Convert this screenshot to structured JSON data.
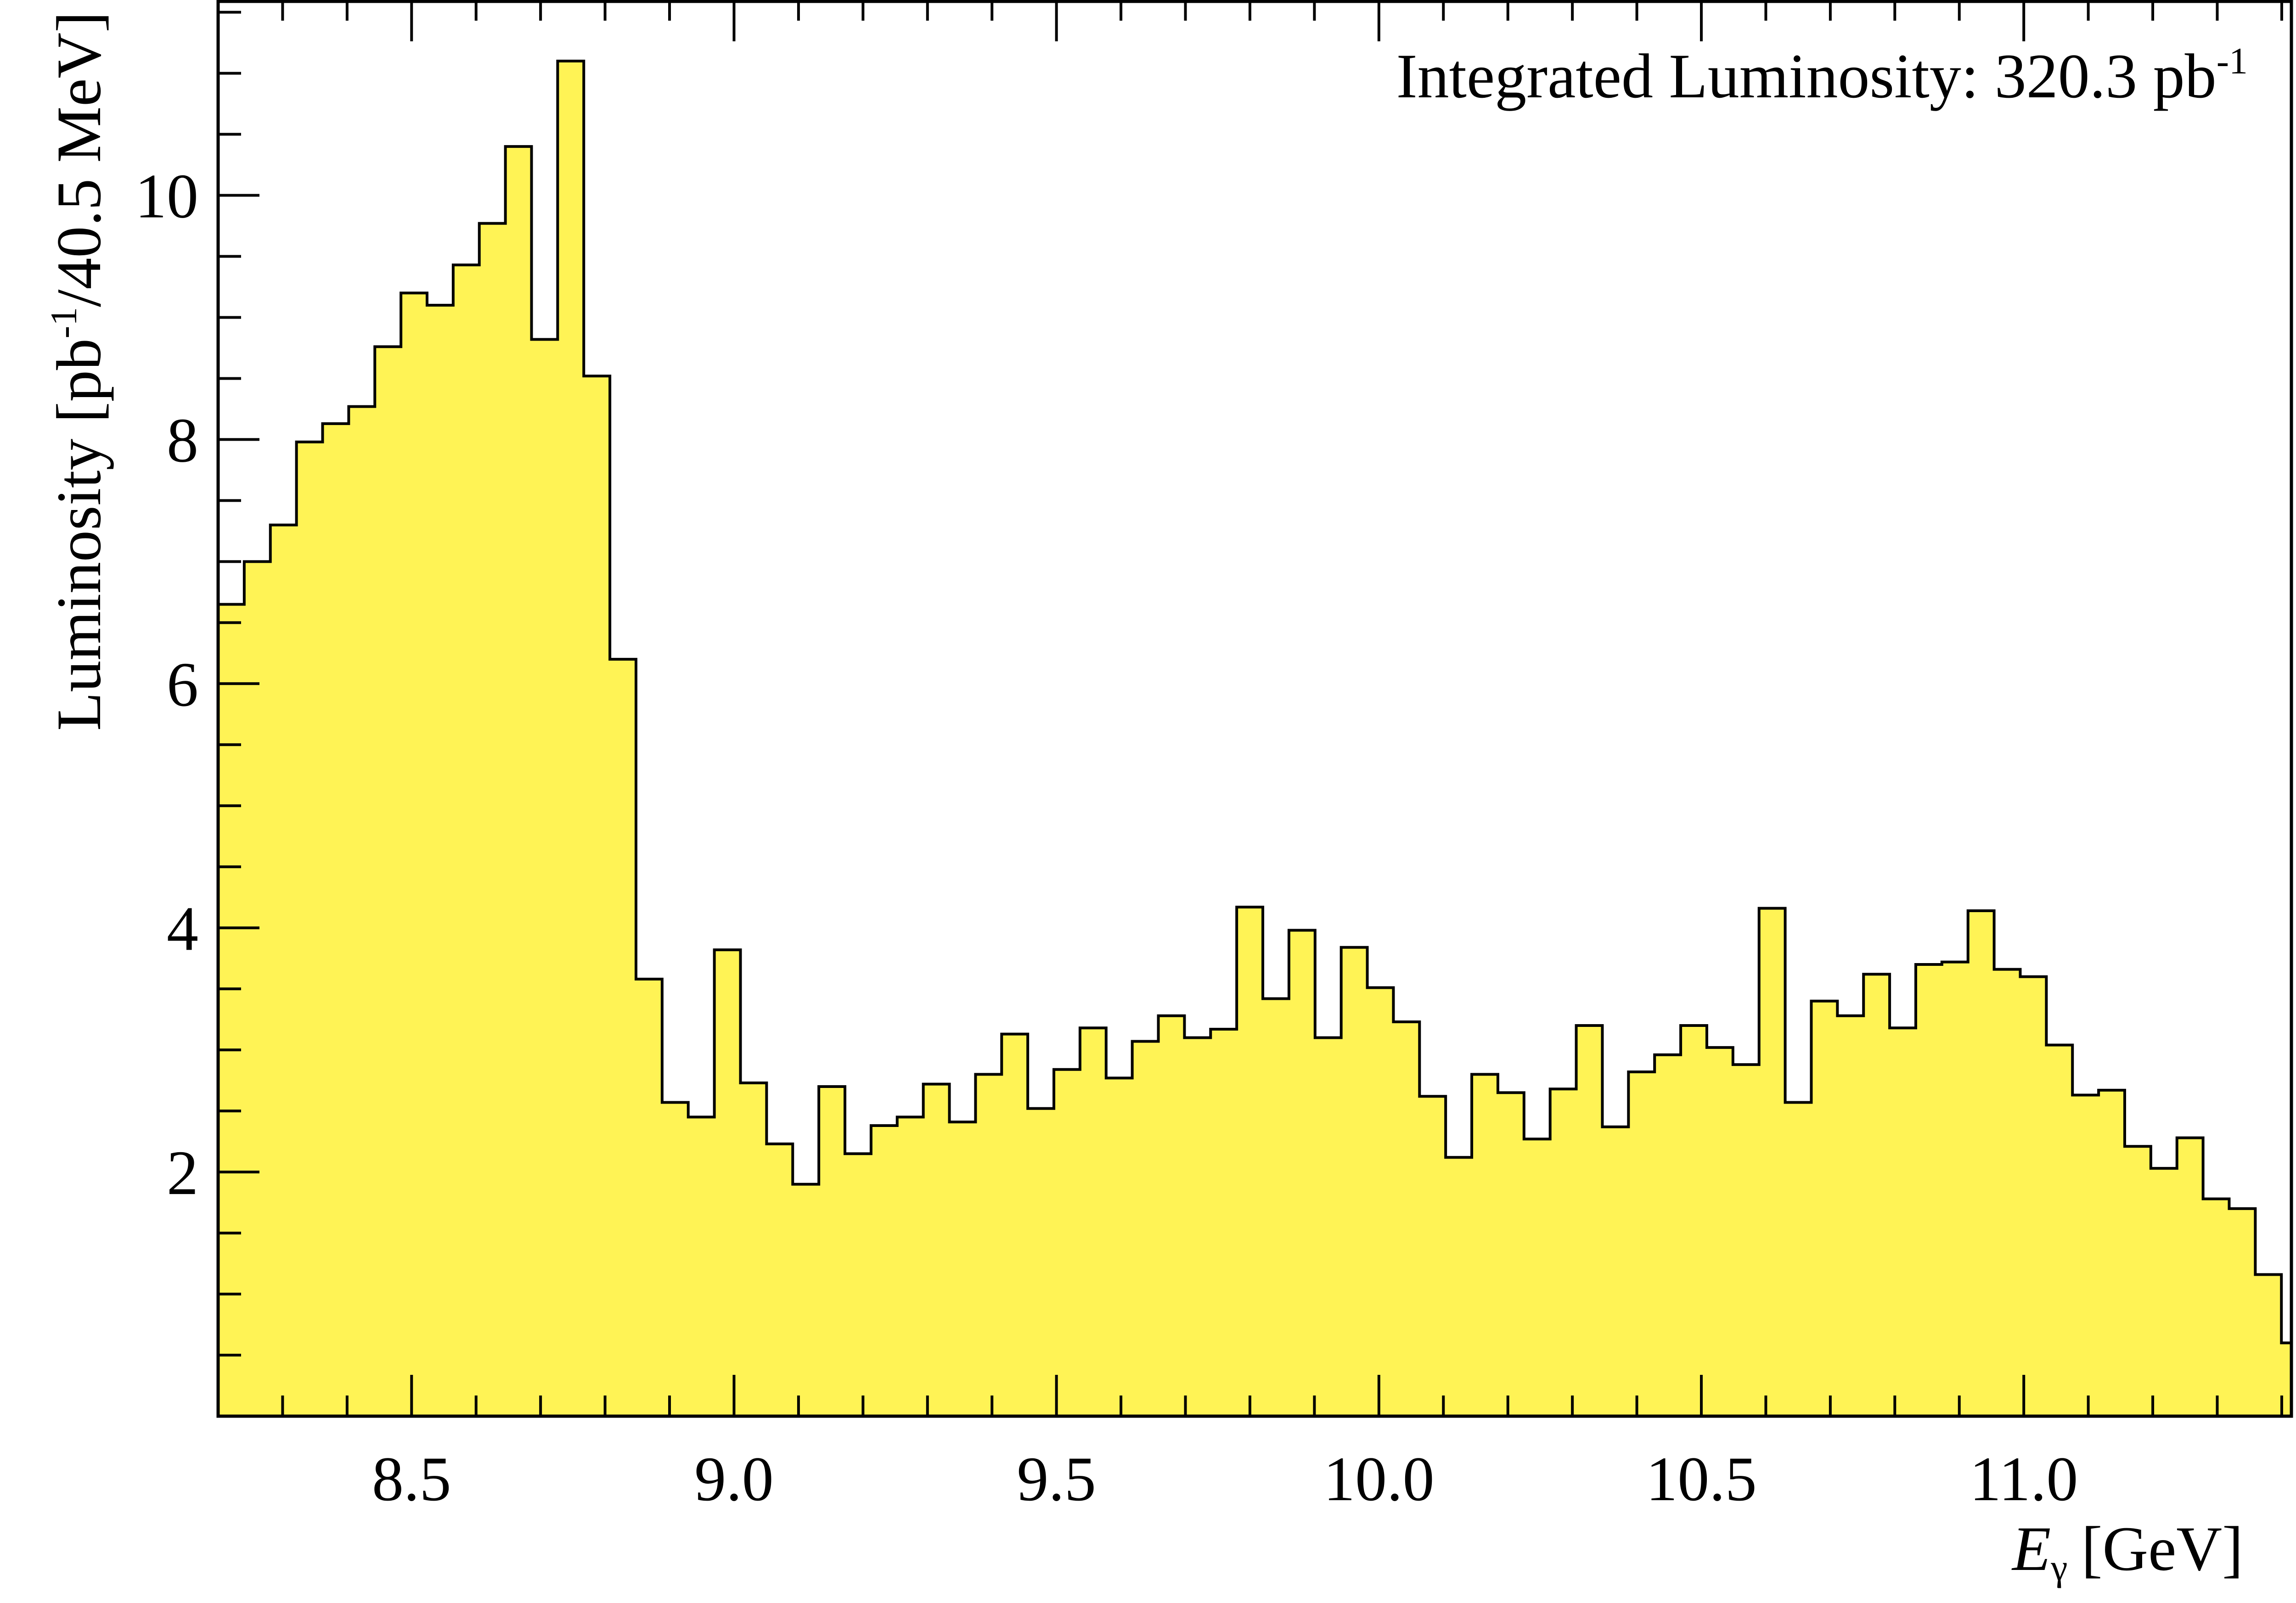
{
  "chart_data": {
    "type": "bar",
    "style": "step-histogram",
    "xlabel": "E",
    "xlabel_subscript": "γ",
    "xlabel_unit": "[GeV]",
    "ylabel_pre": "Luminosity [pb",
    "ylabel_sup": "-1",
    "ylabel_post": "/40.5 MeV]",
    "annotation": {
      "text": "Integrated Luminosity:  320.3 pb",
      "superscript": "-1"
    },
    "xlim": [
      8.2,
      11.415
    ],
    "ylim": [
      0,
      11.6
    ],
    "xticks": [
      "8.5",
      "9.0",
      "9.5",
      "10.0",
      "10.5",
      "11.0"
    ],
    "yticks": [
      "2",
      "4",
      "6",
      "8",
      "10"
    ],
    "bin_width": 0.0405,
    "bin_start": 8.2,
    "values": [
      6.65,
      7.0,
      7.3,
      7.98,
      8.13,
      8.27,
      8.76,
      9.2,
      9.1,
      9.43,
      9.77,
      10.4,
      8.82,
      11.1,
      8.52,
      6.2,
      3.58,
      2.57,
      2.45,
      3.82,
      2.73,
      2.23,
      1.9,
      2.7,
      2.15,
      2.38,
      2.45,
      2.72,
      2.41,
      2.8,
      3.13,
      2.52,
      2.84,
      3.18,
      2.77,
      3.07,
      3.28,
      3.1,
      3.17,
      4.17,
      3.42,
      3.98,
      3.1,
      3.84,
      3.51,
      3.23,
      2.62,
      2.12,
      2.8,
      2.65,
      2.27,
      2.68,
      3.2,
      2.37,
      2.82,
      2.96,
      3.2,
      3.02,
      2.88,
      4.16,
      2.57,
      3.4,
      3.28,
      3.62,
      3.18,
      3.7,
      3.72,
      4.14,
      3.66,
      3.6,
      3.04,
      2.63,
      2.67,
      2.21,
      2.03,
      2.28,
      1.78,
      1.7,
      1.16,
      0.6
    ],
    "fill_color": "#fff355",
    "line_color": "#000000",
    "grid": false,
    "legend": "none"
  }
}
